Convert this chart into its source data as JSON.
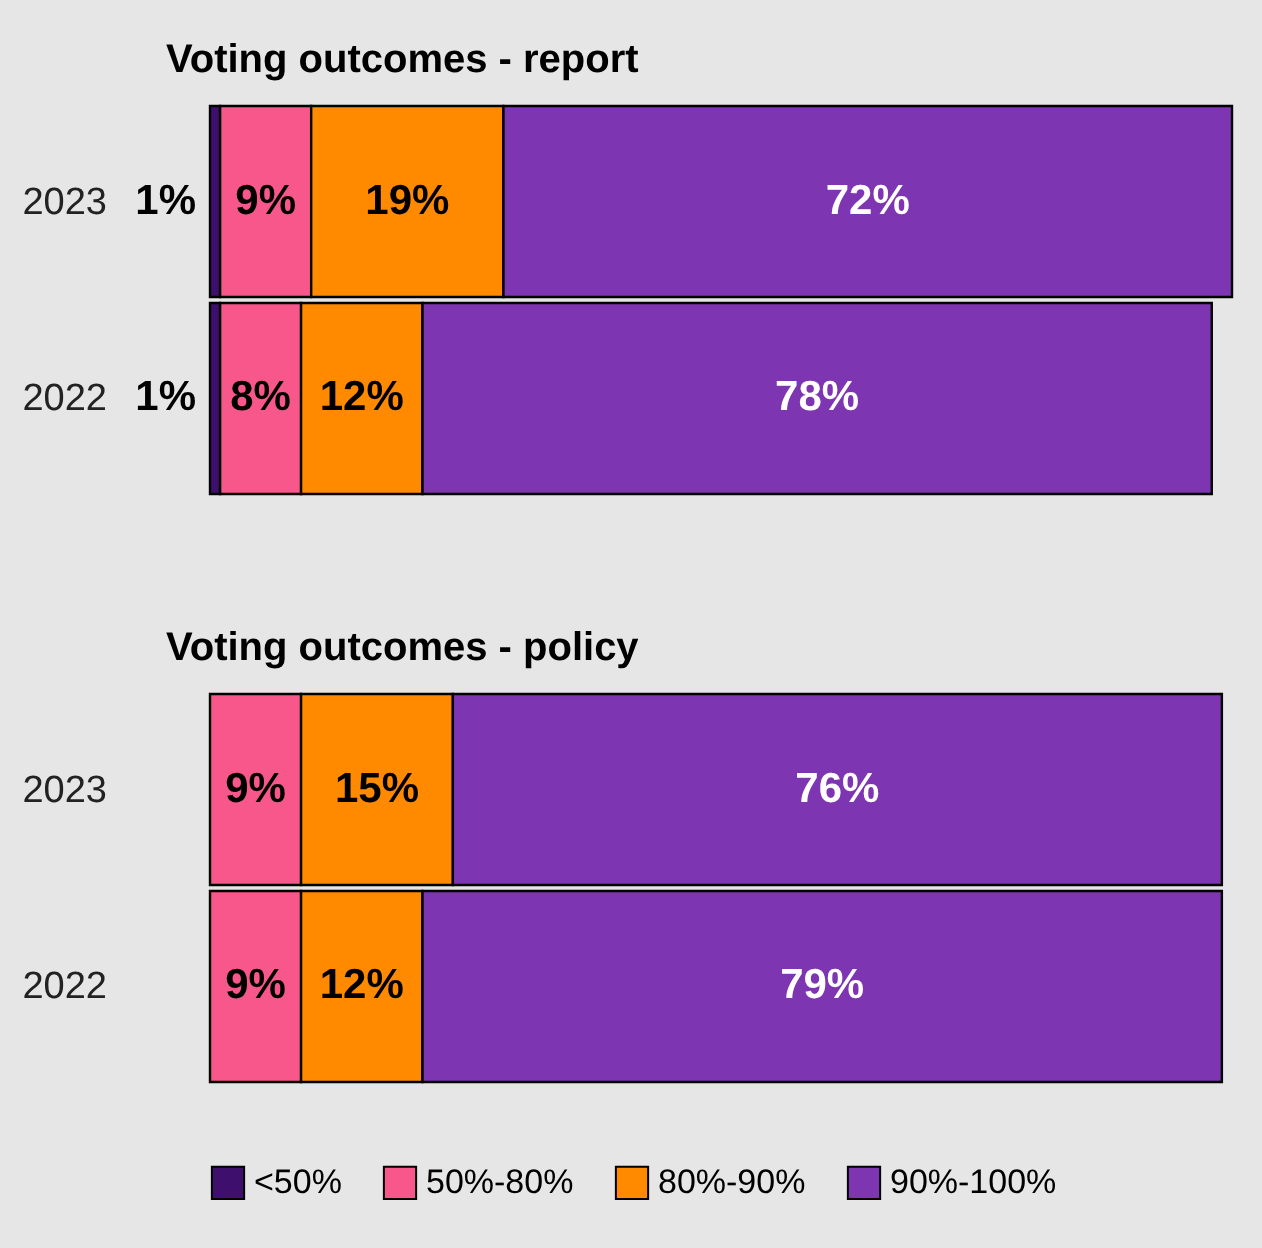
{
  "chart_data": [
    {
      "type": "bar",
      "title": "Voting outcomes - report",
      "orientation": "horizontal",
      "stacked": true,
      "categories": [
        "2023",
        "2022"
      ],
      "xlim": [
        0,
        101
      ],
      "legend": false,
      "series": [
        {
          "color": "#3f0f6e",
          "values": [
            1,
            1
          ],
          "value_labels": [
            "1%",
            "1%"
          ]
        },
        {
          "color": "#f7578a",
          "values": [
            9,
            8
          ],
          "value_labels": [
            "9%",
            "8%"
          ]
        },
        {
          "color": "#ff8a00",
          "values": [
            19,
            12
          ],
          "value_labels": [
            "19%",
            "12%"
          ]
        },
        {
          "color": "#7e35b1",
          "values": [
            72,
            78
          ],
          "value_labels": [
            "72%",
            "78%"
          ]
        }
      ]
    },
    {
      "type": "bar",
      "title": "Voting outcomes - policy",
      "orientation": "horizontal",
      "stacked": true,
      "categories": [
        "2023",
        "2022"
      ],
      "xlim": [
        0,
        101
      ],
      "legend": "bottom",
      "series": [
        {
          "name": "<50%",
          "color": "#3f0f6e",
          "values": [
            null,
            null
          ],
          "value_labels": [
            null,
            null
          ]
        },
        {
          "name": "50%-80%",
          "color": "#f7578a",
          "values": [
            9,
            9
          ],
          "value_labels": [
            "9%",
            "9%"
          ]
        },
        {
          "name": "80%-90%",
          "color": "#ff8a00",
          "values": [
            15,
            12
          ],
          "value_labels": [
            "15%",
            "12%"
          ]
        },
        {
          "name": "90%-100%",
          "color": "#7e35b1",
          "values": [
            76,
            79
          ],
          "value_labels": [
            "76%",
            "79%"
          ]
        }
      ]
    }
  ]
}
